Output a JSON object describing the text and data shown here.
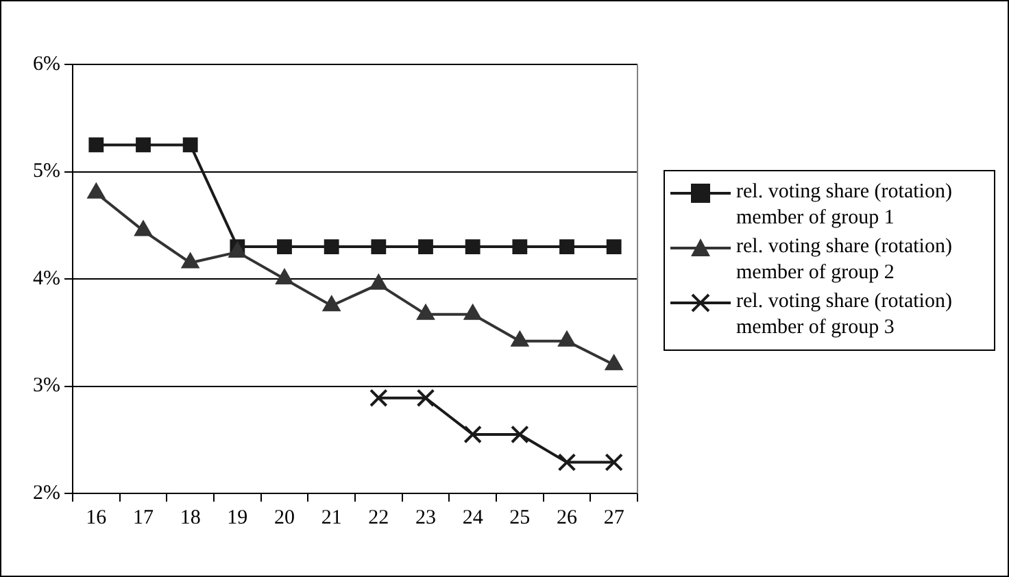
{
  "chart_data": {
    "type": "line",
    "categories": [
      "16",
      "17",
      "18",
      "19",
      "20",
      "21",
      "22",
      "23",
      "24",
      "25",
      "26",
      "27"
    ],
    "series": [
      {
        "name": "rel. voting share (rotation) member of group 1",
        "color": "#1a1a1a",
        "marker": "square",
        "values": [
          5.25,
          5.25,
          5.25,
          4.3,
          4.3,
          4.3,
          4.3,
          4.3,
          4.3,
          4.3,
          4.3,
          4.3
        ]
      },
      {
        "name": "rel. voting share (rotation) member of group 2",
        "color": "#333333",
        "marker": "triangle",
        "values": [
          4.8,
          4.45,
          4.15,
          4.25,
          4.0,
          3.75,
          3.95,
          3.67,
          3.67,
          3.42,
          3.42,
          3.2
        ]
      },
      {
        "name": "rel. voting share (rotation) member of group 3",
        "color": "#1a1a1a",
        "marker": "cross",
        "values": [
          null,
          null,
          null,
          null,
          null,
          null,
          2.89,
          2.89,
          2.55,
          2.55,
          2.29,
          2.29
        ]
      }
    ],
    "ylim": [
      2,
      6
    ],
    "yticks": [
      {
        "value": 2,
        "label": "2%"
      },
      {
        "value": 3,
        "label": "3%"
      },
      {
        "value": 4,
        "label": "4%"
      },
      {
        "value": 5,
        "label": "5%"
      },
      {
        "value": 6,
        "label": "6%"
      }
    ],
    "grid": "y",
    "legend": "right",
    "line_style": "solid"
  }
}
